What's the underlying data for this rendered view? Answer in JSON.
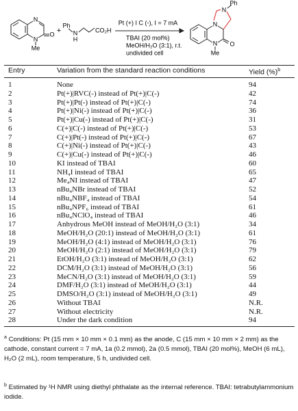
{
  "scheme": {
    "reactant1": {
      "atoms": [
        "N",
        "N",
        "O",
        "Me"
      ]
    },
    "reactant2": {
      "atoms": [
        "Ph",
        "N",
        "H",
        "CO₂H"
      ]
    },
    "product": {
      "atoms": [
        "N",
        "Ph",
        "N",
        "N",
        "O",
        "Me"
      ]
    },
    "plus": "+",
    "conditions": [
      "Pt (+) I C (-), I = 7 mA",
      "TBAI (20 mol%)",
      "MeOH/H₂O (3:1), r.t.",
      "undivided cell"
    ]
  },
  "table": {
    "header": {
      "entry": "Entry",
      "variation": "Variation from the standard reaction conditions",
      "yield": "Yield (%)",
      "yield_mark": "b"
    },
    "rows": [
      [
        1,
        "None",
        "94"
      ],
      [
        2,
        "Pt(+)|RVC(-) instead of Pt(+)|C(-)",
        "42"
      ],
      [
        3,
        "Pt(+)|Pt(-) instead of Pt(+)|C(-)",
        "74"
      ],
      [
        4,
        "Pt(+)|Ni(-) instead of Pt(+)|C(-)",
        "36"
      ],
      [
        5,
        "Pt(+)|Cu(-) instead of Pt(+)|C(-)",
        "31"
      ],
      [
        6,
        "C(+)|C(-) instead of Pt(+)|C(-)",
        "53"
      ],
      [
        7,
        "C(+)|Pt(-) instead of Pt(+)|C(-)",
        "67"
      ],
      [
        8,
        "C(+)|Ni(-) instead of Pt(+)|C(-)",
        "43"
      ],
      [
        9,
        "C(+)|Cu(-) instead of Pt(+)|C(-)",
        "46"
      ],
      [
        10,
        "KI instead of TBAI",
        "60"
      ],
      [
        11,
        "NH₄I instead of TBAI",
        "65"
      ],
      [
        12,
        "Me₄NI instead of TBAI",
        "47"
      ],
      [
        13,
        "nBu₄NBr instead of TBAI",
        "52"
      ],
      [
        14,
        "nBu₄NBF₄ instead of TBAI",
        "54"
      ],
      [
        15,
        "nBu₄NPF₆ instead of TBAI",
        "61"
      ],
      [
        16,
        "nBu₄NClO₄ instead of TBAI",
        "46"
      ],
      [
        17,
        "Anhydrous MeOH instead of MeOH/H₂O (3:1)",
        "34"
      ],
      [
        18,
        "MeOH/H₂O (20:1) instead of MeOH/H₂O (3:1)",
        "61"
      ],
      [
        19,
        "MeOH/H₂O (4:1) instead of MeOH/H₂O (3:1)",
        "76"
      ],
      [
        20,
        "MeOH/H₂O (2:1) instead of MeOH/H₂O (3:1)",
        "79"
      ],
      [
        21,
        "EtOH/H₂O (3:1) instead of MeOH/H₂O (3:1)",
        "62"
      ],
      [
        22,
        "DCM/H₂O (3:1) instead of MeOH/H₂O (3:1)",
        "56"
      ],
      [
        23,
        "MeCN/H₂O (3:1) instead of MeOH/H₂O (3:1)",
        "59"
      ],
      [
        24,
        "DMF/H₂O (3:1) instead of MeOH/H₂O (3:1)",
        "44"
      ],
      [
        25,
        "DMSO/H₂O (3:1) instead of MeOH/H₂O (3:1)",
        "49"
      ],
      [
        26,
        "Without TBAI",
        "N.R."
      ],
      [
        27,
        "Without electricity",
        "N.R."
      ],
      [
        28,
        "Under the dark condition",
        "94"
      ]
    ]
  },
  "footnotes": [
    {
      "mark": "a",
      "text": "Conditions: Pt (15 mm × 10 mm × 0.1 mm) as the anode, C (15 mm × 10 mm × 2 mm) as the cathode, constant current = 7 mA, 1a (0.2 mmol), 2a (0.5 mmol), TBAI (20 mol%), MeOH (6 mL), H₂O (2 mL), room temperature, 5 h, undivided cell."
    },
    {
      "mark": "b",
      "text": "Estimated by ¹H NMR using diethyl phthalate as the internal reference. TBAI: tetrabutylammonium iodide."
    }
  ]
}
